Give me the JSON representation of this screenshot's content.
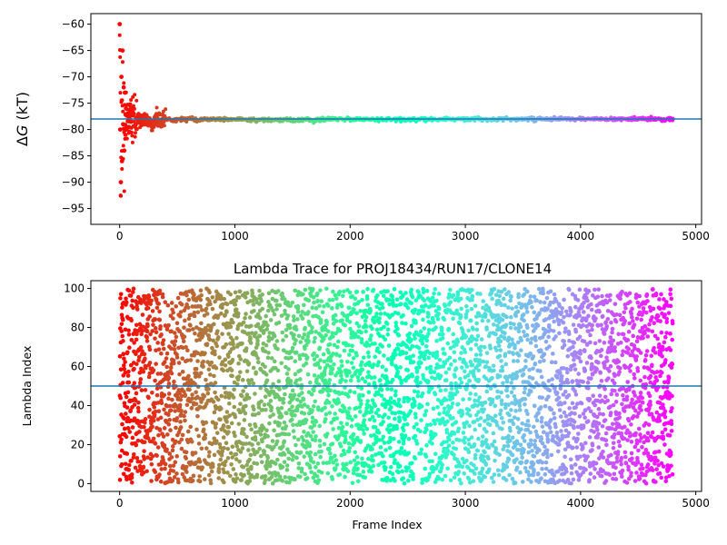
{
  "chart_data": [
    {
      "type": "scatter",
      "title": "",
      "xlabel": "",
      "ylabel": "ΔG (kT)",
      "ylabel_symbol": "Δ",
      "ylabel_italic": "G",
      "ylabel_unit": " (kT)",
      "xlim": [
        -250,
        5050
      ],
      "ylim": [
        -98,
        -58
      ],
      "xticks": [
        0,
        1000,
        2000,
        3000,
        4000,
        5000
      ],
      "xtick_labels": [
        "0",
        "1000",
        "2000",
        "3000",
        "4000",
        "5000"
      ],
      "yticks": [
        -60,
        -65,
        -70,
        -75,
        -80,
        -85,
        -90,
        -95
      ],
      "ytick_labels": [
        "−60",
        "−65",
        "−70",
        "−75",
        "−80",
        "−85",
        "−90",
        "−95"
      ],
      "reference_line": {
        "y": -78.0,
        "color": "#1f77b4"
      },
      "colormap": "rainbow",
      "x_range": [
        0,
        4800
      ],
      "grid": false,
      "series": [
        {
          "x": [
            0,
            5,
            10,
            15,
            20,
            25,
            30,
            35,
            40,
            45,
            50,
            55,
            60,
            70,
            80,
            90,
            100,
            120,
            140,
            160,
            180,
            200,
            240,
            280,
            320,
            380,
            450,
            550,
            700,
            900,
            1200,
            1600,
            2000,
            2500,
            3000,
            3500,
            4000,
            4500,
            4800
          ],
          "values": [
            -60.0,
            -80.0,
            -90.0,
            -70.0,
            -86.0,
            -65.0,
            -79.0,
            -72.0,
            -84.0,
            -73.0,
            -81.0,
            -76.0,
            -80.0,
            -77.0,
            -79.5,
            -76.5,
            -78.5,
            -77.0,
            -79.0,
            -77.5,
            -78.8,
            -77.8,
            -78.5,
            -79.5,
            -78.2,
            -78.0,
            -78.3,
            -77.9,
            -78.1,
            -78.0,
            -78.2,
            -78.1,
            -78.0,
            -78.1,
            -78.0,
            -78.0,
            -78.0,
            -78.0,
            -78.0
          ]
        }
      ]
    },
    {
      "type": "scatter",
      "title": "Lambda Trace for PROJ18434/RUN17/CLONE14",
      "xlabel": "Frame Index",
      "ylabel": "Lambda Index",
      "xlim": [
        -250,
        5050
      ],
      "ylim": [
        -4,
        104
      ],
      "xticks": [
        0,
        1000,
        2000,
        3000,
        4000,
        5000
      ],
      "xtick_labels": [
        "0",
        "1000",
        "2000",
        "3000",
        "4000",
        "5000"
      ],
      "yticks": [
        0,
        20,
        40,
        60,
        80,
        100
      ],
      "ytick_labels": [
        "0",
        "20",
        "40",
        "60",
        "80",
        "100"
      ],
      "reference_line": {
        "y": 50,
        "color": "#1f77b4"
      },
      "colormap": "rainbow",
      "grid": false,
      "series": [
        {
          "description_of_distribution": "uniform",
          "n_points": 4800,
          "x_range": [
            0,
            4800
          ],
          "y_range": [
            0,
            100
          ]
        }
      ]
    }
  ]
}
